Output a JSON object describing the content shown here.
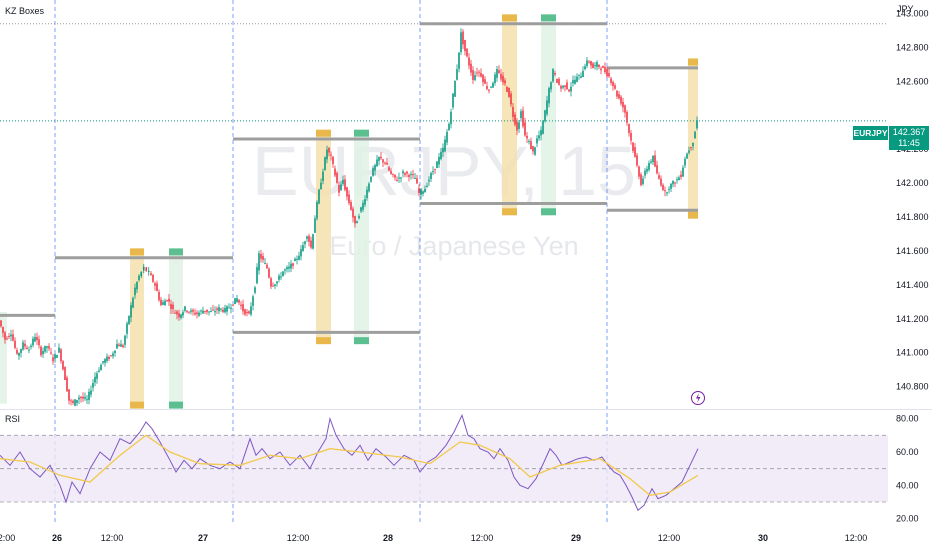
{
  "indicators": {
    "kz_boxes": "KZ Boxes",
    "rsi": "RSI"
  },
  "watermark": {
    "symbol": "EURJPY, 15",
    "name": "Euro / Japanese Yen"
  },
  "price_axis": {
    "currency": "JPY"
  },
  "last_price": {
    "symbol": "EURJPY",
    "price": "142.367",
    "countdown": "11:45"
  },
  "chart_data": [
    {
      "type": "candlestick",
      "symbol": "EURJPY",
      "interval": "15",
      "currency": "JPY",
      "ylim": [
        140.68,
        143.08
      ],
      "y_ticks": [
        "143.000",
        "142.800",
        "142.600",
        "142.400",
        "142.200",
        "142.000",
        "141.800",
        "141.600",
        "141.400",
        "141.200",
        "141.000",
        "140.800"
      ],
      "x_ticks": [
        "12:00",
        "26",
        "12:00",
        "27",
        "12:00",
        "28",
        "12:00",
        "29",
        "12:00",
        "30",
        "12:00"
      ],
      "day_separators": [
        "26",
        "27",
        "28",
        "29"
      ],
      "last_price": 142.367,
      "price_path": [
        [
          0,
          141.19
        ],
        [
          6,
          141.08
        ],
        [
          12,
          141.12
        ],
        [
          18,
          140.98
        ],
        [
          24,
          141.05
        ],
        [
          30,
          141.02
        ],
        [
          36,
          141.1
        ],
        [
          42,
          141.0
        ],
        [
          48,
          141.04
        ],
        [
          54,
          140.96
        ],
        [
          60,
          141.02
        ],
        [
          66,
          140.85
        ],
        [
          70,
          140.72
        ],
        [
          74,
          140.7
        ],
        [
          80,
          140.74
        ],
        [
          88,
          140.72
        ],
        [
          96,
          140.86
        ],
        [
          104,
          140.95
        ],
        [
          112,
          140.98
        ],
        [
          118,
          141.05
        ],
        [
          124,
          141.04
        ],
        [
          130,
          141.22
        ],
        [
          136,
          141.38
        ],
        [
          140,
          141.45
        ],
        [
          145,
          141.5
        ],
        [
          150,
          141.47
        ],
        [
          156,
          141.4
        ],
        [
          162,
          141.28
        ],
        [
          168,
          141.32
        ],
        [
          174,
          141.25
        ],
        [
          180,
          141.22
        ],
        [
          186,
          141.26
        ],
        [
          192,
          141.24
        ],
        [
          198,
          141.23
        ],
        [
          204,
          141.25
        ],
        [
          212,
          141.24
        ],
        [
          220,
          141.26
        ],
        [
          226,
          141.25
        ],
        [
          232,
          141.28
        ],
        [
          238,
          141.32
        ],
        [
          244,
          141.25
        ],
        [
          250,
          141.22
        ],
        [
          256,
          141.4
        ],
        [
          260,
          141.58
        ],
        [
          264,
          141.54
        ],
        [
          268,
          141.5
        ],
        [
          272,
          141.4
        ],
        [
          278,
          141.42
        ],
        [
          284,
          141.48
        ],
        [
          290,
          141.5
        ],
        [
          296,
          141.54
        ],
        [
          302,
          141.6
        ],
        [
          308,
          141.7
        ],
        [
          312,
          141.62
        ],
        [
          316,
          141.8
        ],
        [
          320,
          141.95
        ],
        [
          324,
          142.08
        ],
        [
          328,
          142.2
        ],
        [
          332,
          142.15
        ],
        [
          336,
          142.05
        ],
        [
          340,
          141.95
        ],
        [
          344,
          142.02
        ],
        [
          348,
          141.92
        ],
        [
          352,
          141.85
        ],
        [
          356,
          141.75
        ],
        [
          360,
          141.82
        ],
        [
          364,
          141.88
        ],
        [
          368,
          141.96
        ],
        [
          372,
          142.05
        ],
        [
          376,
          142.1
        ],
        [
          380,
          142.15
        ],
        [
          386,
          142.12
        ],
        [
          392,
          142.05
        ],
        [
          398,
          142.02
        ],
        [
          404,
          142.06
        ],
        [
          410,
          142.05
        ],
        [
          416,
          142.03
        ],
        [
          420,
          141.94
        ],
        [
          426,
          141.97
        ],
        [
          432,
          142.05
        ],
        [
          438,
          142.12
        ],
        [
          444,
          142.2
        ],
        [
          450,
          142.35
        ],
        [
          454,
          142.52
        ],
        [
          458,
          142.68
        ],
        [
          462,
          142.88
        ],
        [
          466,
          142.78
        ],
        [
          470,
          142.7
        ],
        [
          474,
          142.62
        ],
        [
          478,
          142.66
        ],
        [
          482,
          142.64
        ],
        [
          486,
          142.58
        ],
        [
          490,
          142.55
        ],
        [
          494,
          142.6
        ],
        [
          498,
          142.66
        ],
        [
          502,
          142.62
        ],
        [
          506,
          142.58
        ],
        [
          510,
          142.52
        ],
        [
          514,
          142.4
        ],
        [
          518,
          142.32
        ],
        [
          522,
          142.42
        ],
        [
          526,
          142.28
        ],
        [
          530,
          142.24
        ],
        [
          534,
          142.18
        ],
        [
          538,
          142.26
        ],
        [
          542,
          142.3
        ],
        [
          546,
          142.42
        ],
        [
          550,
          142.55
        ],
        [
          554,
          142.66
        ],
        [
          558,
          142.6
        ],
        [
          562,
          142.56
        ],
        [
          566,
          142.58
        ],
        [
          570,
          142.55
        ],
        [
          574,
          142.6
        ],
        [
          578,
          142.62
        ],
        [
          582,
          142.64
        ],
        [
          586,
          142.7
        ],
        [
          590,
          142.72
        ],
        [
          594,
          142.68
        ],
        [
          598,
          142.7
        ],
        [
          602,
          142.68
        ],
        [
          606,
          142.66
        ],
        [
          610,
          142.63
        ],
        [
          614,
          142.58
        ],
        [
          618,
          142.52
        ],
        [
          622,
          142.48
        ],
        [
          626,
          142.42
        ],
        [
          630,
          142.3
        ],
        [
          634,
          142.2
        ],
        [
          638,
          142.1
        ],
        [
          642,
          142.0
        ],
        [
          646,
          142.06
        ],
        [
          650,
          142.12
        ],
        [
          654,
          142.15
        ],
        [
          658,
          142.05
        ],
        [
          662,
          142.0
        ],
        [
          666,
          141.94
        ],
        [
          670,
          141.98
        ],
        [
          674,
          142.0
        ],
        [
          678,
          142.02
        ],
        [
          682,
          142.05
        ],
        [
          686,
          142.15
        ],
        [
          690,
          142.2
        ],
        [
          694,
          142.25
        ],
        [
          698,
          142.37
        ]
      ],
      "kz_boxes": [
        {
          "level": "high",
          "x_from": 0,
          "x_to": 55,
          "price": 141.22
        },
        {
          "level": "high",
          "x_from": 55,
          "x_to": 233,
          "price": 141.56
        },
        {
          "level": "high",
          "x_from": 233,
          "x_to": 420,
          "price": 142.26
        },
        {
          "level": "low",
          "x_from": 233,
          "x_to": 420,
          "price": 141.12
        },
        {
          "level": "high",
          "x_from": 420,
          "x_to": 607,
          "price": 142.94
        },
        {
          "level": "low",
          "x_from": 420,
          "x_to": 607,
          "price": 141.88
        },
        {
          "level": "high",
          "x_from": 607,
          "x_to": 698,
          "price": 142.68
        },
        {
          "level": "low",
          "x_from": 607,
          "x_to": 698,
          "price": 141.84
        }
      ],
      "killzones": [
        {
          "kind": "asia",
          "x": 130,
          "width": 14,
          "top": 141.58,
          "bottom": 140.7,
          "color": "#f5e0ad"
        },
        {
          "kind": "london",
          "x": 169,
          "width": 14,
          "top": 141.58,
          "bottom": 140.7,
          "color": "#dff2e5"
        },
        {
          "kind": "asia",
          "x": 316,
          "width": 15,
          "top": 142.28,
          "bottom": 141.08,
          "color": "#f5e0ad"
        },
        {
          "kind": "london",
          "x": 354,
          "width": 15,
          "top": 142.28,
          "bottom": 141.08,
          "color": "#dff2e5"
        },
        {
          "kind": "asia",
          "x": 502,
          "width": 15,
          "top": 142.96,
          "bottom": 141.84,
          "color": "#f5e0ad"
        },
        {
          "kind": "london",
          "x": 541,
          "width": 15,
          "top": 142.96,
          "bottom": 141.84,
          "color": "#dff2e5"
        },
        {
          "kind": "asia",
          "x": 688,
          "width": 10,
          "top": 142.7,
          "bottom": 141.82,
          "color": "#f5e0ad"
        },
        {
          "kind": "london",
          "x": 0,
          "width": 7,
          "top": 141.24,
          "bottom": 140.7,
          "color": "#dff2e5"
        }
      ],
      "colors": {
        "up": "#089981",
        "down": "#f23645",
        "box_line": "#9e9e9e"
      }
    },
    {
      "type": "line",
      "title": "RSI",
      "ylim": [
        18,
        84
      ],
      "y_ticks": [
        "80.00",
        "60.00",
        "40.00",
        "20.00"
      ],
      "bands": [
        70,
        50,
        30
      ],
      "series": [
        {
          "color": "#7e57c2",
          "points": [
            [
              0,
              58
            ],
            [
              10,
              52
            ],
            [
              20,
              60
            ],
            [
              30,
              50
            ],
            [
              40,
              45
            ],
            [
              50,
              52
            ],
            [
              60,
              40
            ],
            [
              66,
              30
            ],
            [
              72,
              42
            ],
            [
              80,
              35
            ],
            [
              90,
              50
            ],
            [
              100,
              60
            ],
            [
              110,
              55
            ],
            [
              120,
              68
            ],
            [
              130,
              65
            ],
            [
              140,
              72
            ],
            [
              146,
              78
            ],
            [
              152,
              74
            ],
            [
              160,
              66
            ],
            [
              170,
              55
            ],
            [
              176,
              48
            ],
            [
              184,
              55
            ],
            [
              192,
              50
            ],
            [
              200,
              56
            ],
            [
              210,
              52
            ],
            [
              220,
              50
            ],
            [
              230,
              54
            ],
            [
              240,
              50
            ],
            [
              250,
              68
            ],
            [
              256,
              58
            ],
            [
              262,
              62
            ],
            [
              270,
              56
            ],
            [
              280,
              60
            ],
            [
              290,
              52
            ],
            [
              300,
              58
            ],
            [
              310,
              50
            ],
            [
              318,
              60
            ],
            [
              326,
              68
            ],
            [
              330,
              80
            ],
            [
              336,
              70
            ],
            [
              344,
              62
            ],
            [
              352,
              58
            ],
            [
              360,
              64
            ],
            [
              368,
              55
            ],
            [
              376,
              62
            ],
            [
              386,
              57
            ],
            [
              394,
              52
            ],
            [
              404,
              58
            ],
            [
              414,
              55
            ],
            [
              420,
              48
            ],
            [
              428,
              54
            ],
            [
              436,
              57
            ],
            [
              446,
              64
            ],
            [
              454,
              72
            ],
            [
              462,
              82
            ],
            [
              468,
              70
            ],
            [
              474,
              68
            ],
            [
              480,
              62
            ],
            [
              488,
              60
            ],
            [
              494,
              56
            ],
            [
              500,
              62
            ],
            [
              508,
              55
            ],
            [
              514,
              45
            ],
            [
              520,
              40
            ],
            [
              528,
              38
            ],
            [
              536,
              44
            ],
            [
              544,
              54
            ],
            [
              550,
              62
            ],
            [
              556,
              58
            ],
            [
              562,
              52
            ],
            [
              570,
              54
            ],
            [
              578,
              56
            ],
            [
              586,
              57
            ],
            [
              594,
              55
            ],
            [
              602,
              57
            ],
            [
              608,
              52
            ],
            [
              614,
              48
            ],
            [
              620,
              46
            ],
            [
              626,
              40
            ],
            [
              632,
              33
            ],
            [
              638,
              25
            ],
            [
              644,
              28
            ],
            [
              652,
              38
            ],
            [
              658,
              32
            ],
            [
              666,
              34
            ],
            [
              674,
              38
            ],
            [
              682,
              42
            ],
            [
              690,
              52
            ],
            [
              698,
              62
            ]
          ]
        },
        {
          "color": "#f2c94c",
          "points": [
            [
              0,
              56
            ],
            [
              30,
              54
            ],
            [
              60,
              46
            ],
            [
              90,
              42
            ],
            [
              120,
              58
            ],
            [
              146,
              70
            ],
            [
              170,
              60
            ],
            [
              200,
              53
            ],
            [
              240,
              52
            ],
            [
              270,
              58
            ],
            [
              300,
              56
            ],
            [
              330,
              62
            ],
            [
              360,
              60
            ],
            [
              400,
              57
            ],
            [
              430,
              53
            ],
            [
              460,
              66
            ],
            [
              480,
              64
            ],
            [
              510,
              56
            ],
            [
              530,
              45
            ],
            [
              560,
              52
            ],
            [
              600,
              56
            ],
            [
              630,
              44
            ],
            [
              650,
              34
            ],
            [
              670,
              36
            ],
            [
              698,
              46
            ]
          ]
        }
      ]
    }
  ]
}
